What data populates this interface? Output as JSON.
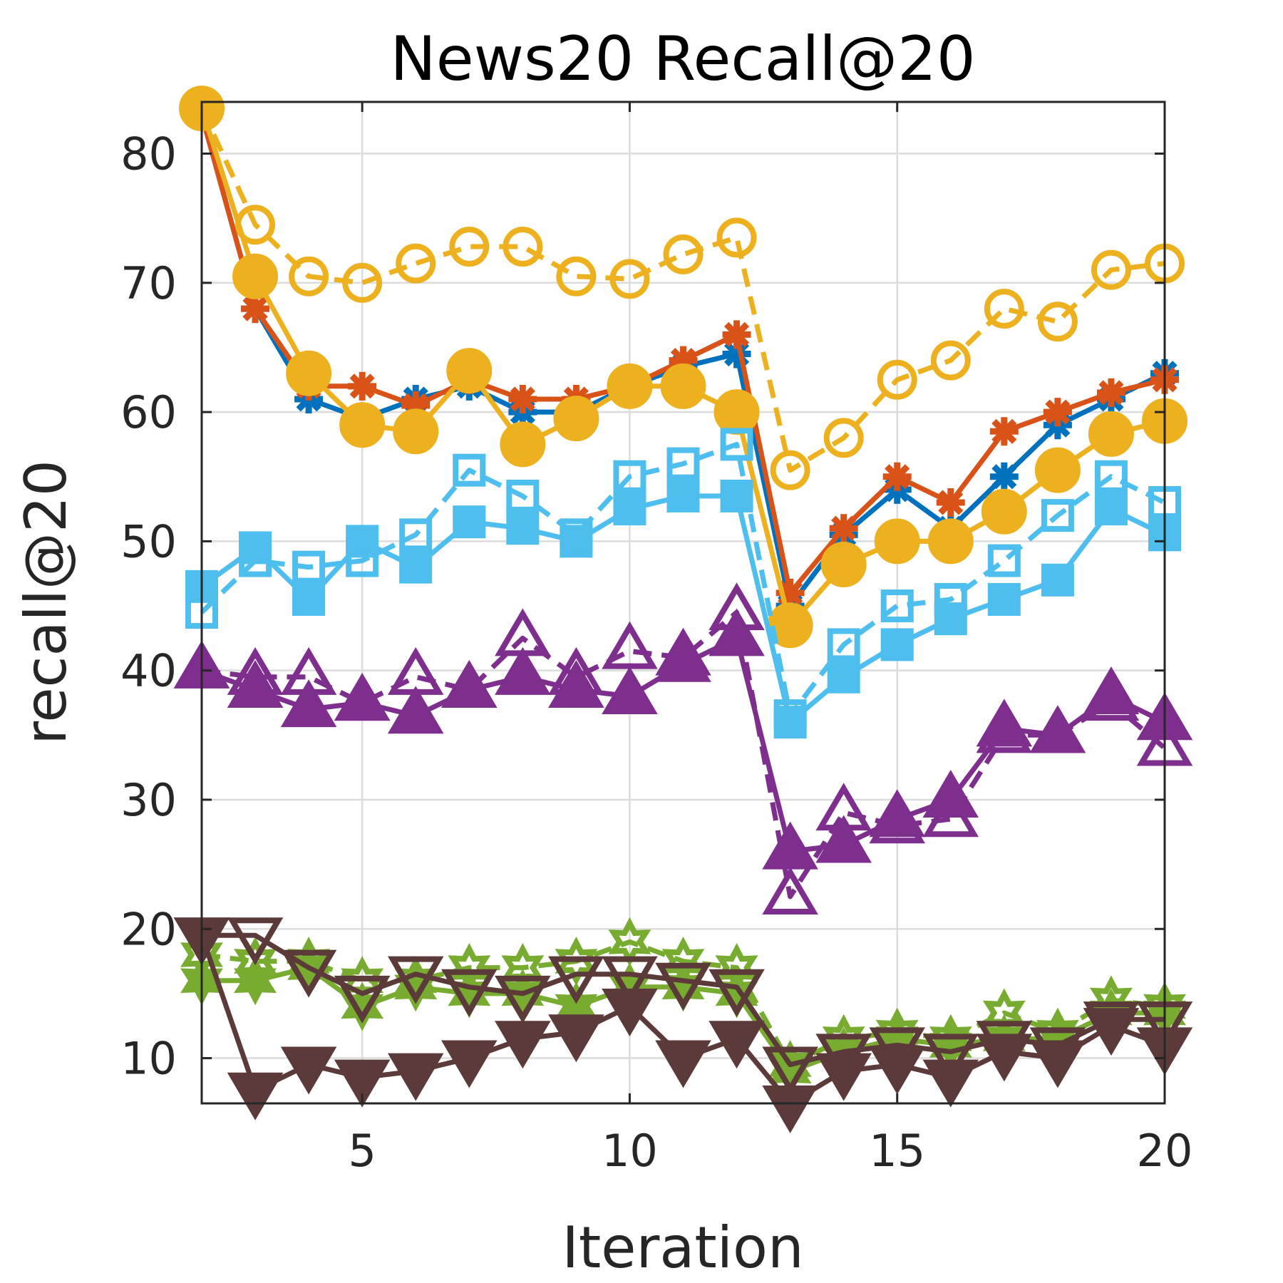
{
  "chart_data": {
    "type": "line",
    "title": "News20 Recall@20",
    "xlabel": "Iteration",
    "ylabel": "recall@20",
    "xlim": [
      2,
      20
    ],
    "ylim": [
      6.5,
      84
    ],
    "xticks": [
      5,
      10,
      15,
      20
    ],
    "yticks": [
      10,
      20,
      30,
      40,
      50,
      60,
      70,
      80
    ],
    "grid": true,
    "legend": "none",
    "x": [
      2,
      3,
      4,
      5,
      6,
      7,
      8,
      9,
      10,
      11,
      12,
      13,
      14,
      15,
      16,
      17,
      18,
      19,
      20
    ],
    "series": [
      {
        "color": "#0072BD",
        "marker": "star",
        "fill": true,
        "dashed": false,
        "values": [
          83,
          68,
          61,
          59.5,
          61,
          62,
          60,
          60,
          62,
          63.5,
          64.5,
          45,
          50.5,
          54,
          51,
          55,
          59,
          61,
          63
        ]
      },
      {
        "color": "#D95319",
        "marker": "star",
        "fill": true,
        "dashed": false,
        "values": [
          83,
          68,
          62,
          62,
          60.5,
          62.5,
          61,
          61,
          62,
          64,
          66,
          46,
          51,
          55,
          53,
          58.5,
          60,
          61.5,
          62.5
        ]
      },
      {
        "color": "#EDB120",
        "marker": "circle",
        "fill": true,
        "dashed": false,
        "values": [
          83.5,
          70.5,
          63,
          59,
          58.5,
          63.2,
          57.5,
          59.5,
          62,
          62,
          60,
          43.5,
          48.2,
          50,
          50,
          52.3,
          55.5,
          58.3,
          59.3
        ]
      },
      {
        "color": "#EDB120",
        "marker": "circle",
        "fill": false,
        "dashed": true,
        "values": [
          83.5,
          74.5,
          70.5,
          70,
          71.5,
          72.8,
          72.8,
          70.5,
          70.3,
          72.2,
          73.5,
          55.5,
          58,
          62.5,
          64,
          68,
          67,
          71,
          71.5
        ]
      },
      {
        "color": "#4DBEEE",
        "marker": "square",
        "fill": true,
        "dashed": false,
        "values": [
          46.5,
          49.5,
          45.5,
          50,
          48,
          51.5,
          51,
          50,
          52.5,
          53.5,
          53.5,
          36,
          39.5,
          42,
          44,
          45.5,
          47,
          52.5,
          50.5
        ]
      },
      {
        "color": "#4DBEEE",
        "marker": "square",
        "fill": false,
        "dashed": true,
        "values": [
          44.5,
          48.5,
          48,
          48.5,
          50.5,
          55.5,
          53.5,
          50.5,
          55,
          56,
          57.5,
          36.5,
          42,
          45,
          45.5,
          48.5,
          52,
          55,
          53
        ]
      },
      {
        "color": "#7E2F8E",
        "marker": "triangle-up",
        "fill": true,
        "dashed": false,
        "values": [
          40,
          38.5,
          37,
          37.5,
          36.5,
          38.5,
          39.5,
          38.5,
          38,
          40.5,
          42.5,
          26,
          26.5,
          28.5,
          30,
          35.5,
          35,
          38,
          36
        ]
      },
      {
        "color": "#7E2F8E",
        "marker": "triangle-up",
        "fill": false,
        "dashed": true,
        "values": [
          40,
          39.5,
          39.5,
          37.5,
          39.5,
          38.5,
          42.5,
          39.5,
          41.5,
          41,
          44.5,
          22.5,
          29,
          28,
          28.5,
          35,
          35,
          37.5,
          34
        ]
      },
      {
        "color": "#77AC30",
        "marker": "hexagram",
        "fill": true,
        "dashed": false,
        "values": [
          16,
          16,
          17,
          14,
          15.5,
          15,
          15,
          14,
          15.5,
          15.5,
          15,
          9,
          10.5,
          11.5,
          11,
          11.5,
          11.5,
          13.5,
          13.5
        ]
      },
      {
        "color": "#77AC30",
        "marker": "hexagram",
        "fill": false,
        "dashed": true,
        "values": [
          18,
          17.5,
          17.5,
          16,
          16,
          17,
          17,
          17.5,
          19,
          17.5,
          17,
          9.5,
          11.5,
          12,
          11.5,
          13.5,
          12,
          14.5,
          14
        ]
      },
      {
        "color": "#5C3A3A",
        "marker": "triangle-down",
        "fill": true,
        "dashed": false,
        "values": [
          19.5,
          7.5,
          9.5,
          8.5,
          9,
          10,
          11.5,
          12,
          14,
          10,
          11.5,
          6.5,
          9,
          9.5,
          8.5,
          10.5,
          10,
          12.5,
          11
        ]
      },
      {
        "color": "#5C3A3A",
        "marker": "triangle-down",
        "fill": false,
        "dashed": false,
        "values": [
          19.5,
          19.5,
          17,
          15,
          16.5,
          15.5,
          15,
          16.5,
          16.5,
          16,
          15.5,
          9.5,
          10.5,
          11,
          10.5,
          11.5,
          11,
          13,
          13
        ]
      }
    ]
  }
}
